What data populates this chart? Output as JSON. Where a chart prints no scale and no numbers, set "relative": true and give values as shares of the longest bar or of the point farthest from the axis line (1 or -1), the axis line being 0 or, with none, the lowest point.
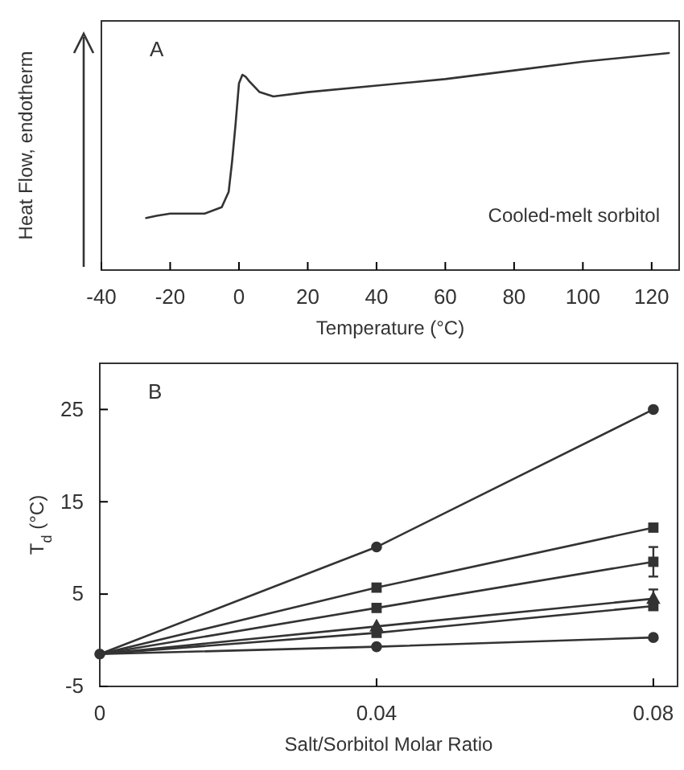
{
  "chart_data": [
    {
      "type": "line",
      "relative": true,
      "xlabel": "Temperature (°C)",
      "ylabel": "Heat Flow, endotherm",
      "xlim": [
        -40,
        128
      ],
      "xticks": [
        -40,
        -20,
        0,
        20,
        40,
        60,
        80,
        100,
        120
      ],
      "annotations": [
        "A",
        "Cooled-melt sorbitol"
      ],
      "marker": "none",
      "series": [
        {
          "color": "#333333",
          "x": [
            -27,
            -24,
            -20,
            -10,
            -5,
            -3,
            -2,
            -1,
            0,
            1,
            2,
            3,
            6,
            10,
            20,
            40,
            60,
            80,
            100,
            125
          ],
          "values": [
            0.24,
            0.25,
            0.26,
            0.26,
            0.29,
            0.36,
            0.5,
            0.67,
            0.86,
            0.9,
            0.89,
            0.87,
            0.82,
            0.8,
            0.82,
            0.85,
            0.88,
            0.92,
            0.96,
            1
          ]
        }
      ]
    },
    {
      "type": "line",
      "xlabel": "Salt/Sorbitol Molar Ratio",
      "ylabel": "T$_{d}$ (°C)",
      "xlim": [
        0,
        0.0835
      ],
      "ylim": [
        -5,
        30
      ],
      "xticks": [
        0,
        0.04,
        0.08
      ],
      "yticks": [
        -5,
        5,
        15,
        25
      ],
      "annotations": [
        "B"
      ],
      "series": [
        {
          "color": "#333333",
          "marker": "circle",
          "x": [
            0,
            0.04,
            0.08
          ],
          "values": [
            -1.5,
            10.1,
            25
          ]
        },
        {
          "color": "#333333",
          "marker": "square",
          "x": [
            0,
            0.04,
            0.08
          ],
          "values": [
            -1.5,
            5.7,
            12.2
          ]
        },
        {
          "color": "#333333",
          "marker": "square",
          "x": [
            0,
            0.04,
            0.08
          ],
          "values": [
            -1.5,
            3.5,
            8.5
          ],
          "errors": [
            null,
            null,
            1.6
          ]
        },
        {
          "color": "#333333",
          "marker": "triangle",
          "x": [
            0,
            0.04,
            0.08
          ],
          "values": [
            -1.5,
            1.5,
            4.5
          ],
          "errors": [
            null,
            null,
            1.0
          ]
        },
        {
          "color": "#333333",
          "marker": "square",
          "x": [
            0,
            0.04,
            0.08
          ],
          "values": [
            -1.5,
            0.8,
            3.7
          ]
        },
        {
          "color": "#333333",
          "marker": "circle",
          "x": [
            0,
            0.04,
            0.08
          ],
          "values": [
            -1.5,
            -0.7,
            0.3
          ]
        }
      ]
    }
  ]
}
